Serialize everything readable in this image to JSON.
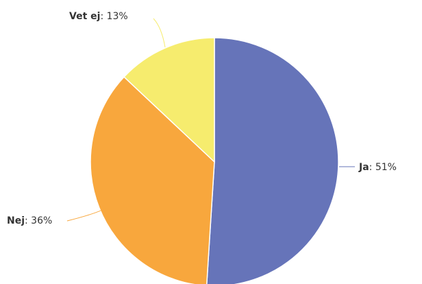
{
  "chart_data": {
    "type": "pie",
    "title": "",
    "slices": [
      {
        "label": "Ja",
        "value": 51,
        "value_text": "51%",
        "color": "#6674b9"
      },
      {
        "label": "Nej",
        "value": 36,
        "value_text": "36%",
        "color": "#f8a73d"
      },
      {
        "label": "Vet ej",
        "value": 13,
        "value_text": "13%",
        "color": "#f6ec6e"
      }
    ],
    "start_angle": "12 o'clock",
    "direction": "clockwise",
    "label_style": "outside with connector lines",
    "slice_border_color": "#ffffff"
  }
}
